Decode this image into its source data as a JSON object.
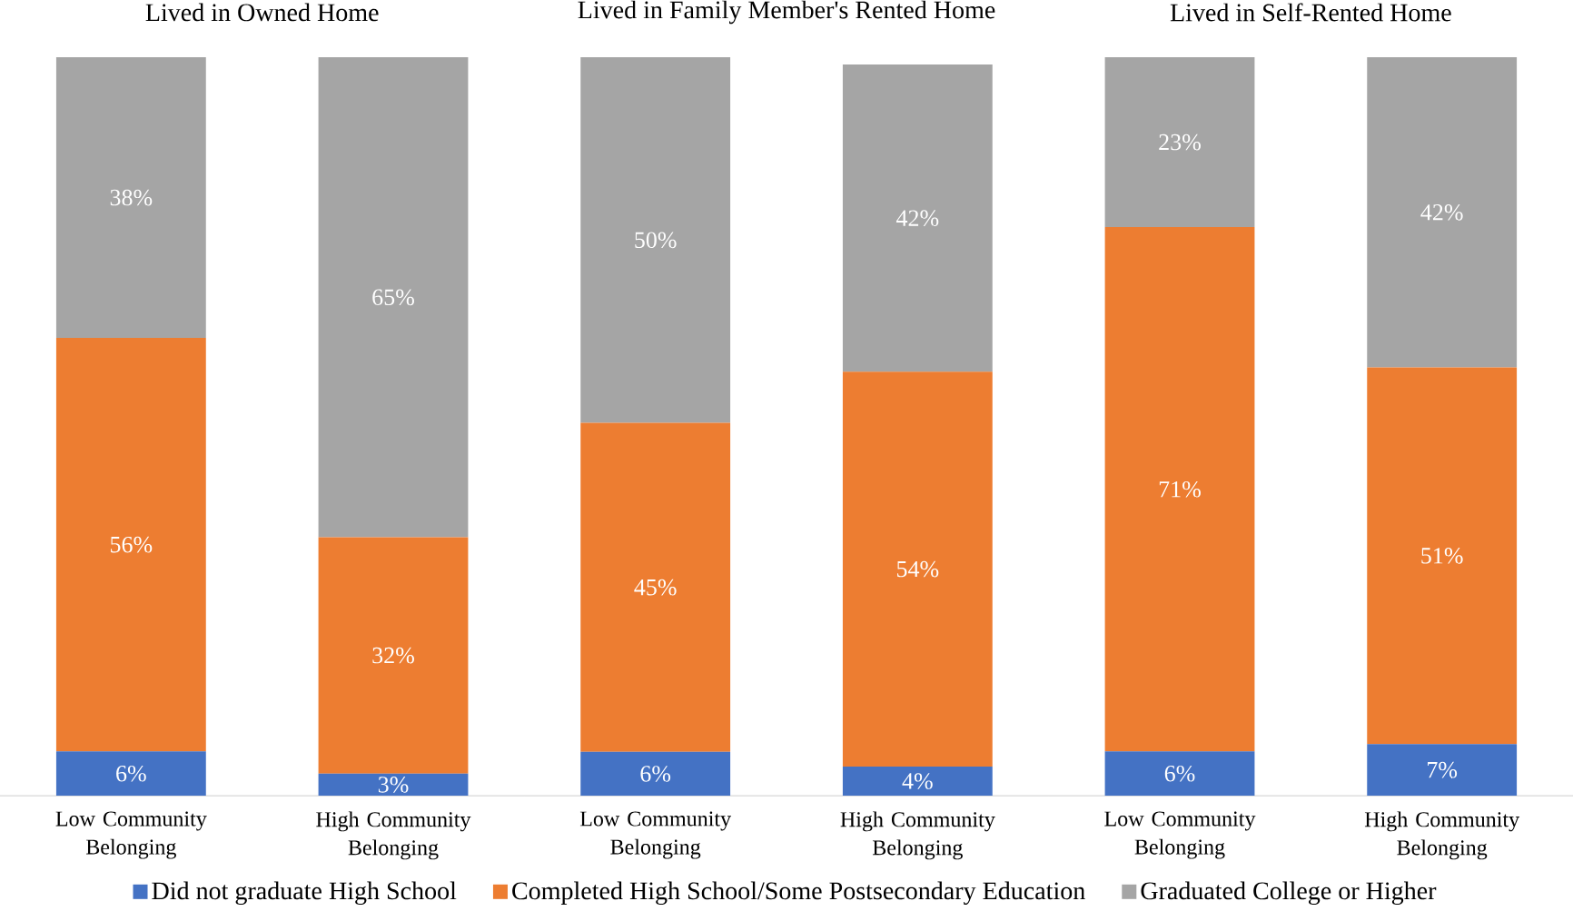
{
  "chart_data": [
    {
      "type": "bar",
      "stacked": true,
      "title": "Lived in Owned Home",
      "categories": [
        "Low Community Belonging",
        "High Community Belonging"
      ],
      "legend": "bottom",
      "series": [
        {
          "name": "Did not graduate High School",
          "color": "#4472c4",
          "values": [
            6,
            3
          ],
          "value_labels": [
            "6%",
            "3%"
          ]
        },
        {
          "name": "Completed High School/Some Postsecondary Education",
          "color": "#ed7d31",
          "values": [
            56,
            32
          ],
          "value_labels": [
            "56%",
            "32%"
          ]
        },
        {
          "name": "Graduated College or Higher",
          "color": "#a5a5a5",
          "values": [
            38,
            65
          ],
          "value_labels": [
            "38%",
            "65%"
          ]
        }
      ]
    },
    {
      "type": "bar",
      "stacked": true,
      "title": "Lived in Family Member's Rented Home",
      "categories": [
        "Low Community Belonging",
        "High Community Belonging"
      ],
      "series": [
        {
          "color": "#4472c4",
          "values": [
            6,
            4
          ],
          "value_labels": [
            "6%",
            "4%"
          ]
        },
        {
          "color": "#ed7d31",
          "values": [
            45,
            54
          ],
          "value_labels": [
            "45%",
            "54%"
          ]
        },
        {
          "color": "#a5a5a5",
          "values": [
            50,
            42
          ],
          "value_labels": [
            "50%",
            "42%"
          ]
        }
      ]
    },
    {
      "type": "bar",
      "stacked": true,
      "title": "Lived in Self-Rented Home",
      "categories": [
        "Low Community Belonging",
        "High Community Belonging"
      ],
      "series": [
        {
          "color": "#4472c4",
          "values": [
            6,
            7
          ],
          "value_labels": [
            "6%",
            "7%"
          ]
        },
        {
          "color": "#ed7d31",
          "values": [
            71,
            51
          ],
          "value_labels": [
            "71%",
            "51%"
          ]
        },
        {
          "color": "#a5a5a5",
          "values": [
            23,
            42
          ],
          "value_labels": [
            "23%",
            "42%"
          ]
        }
      ]
    }
  ]
}
